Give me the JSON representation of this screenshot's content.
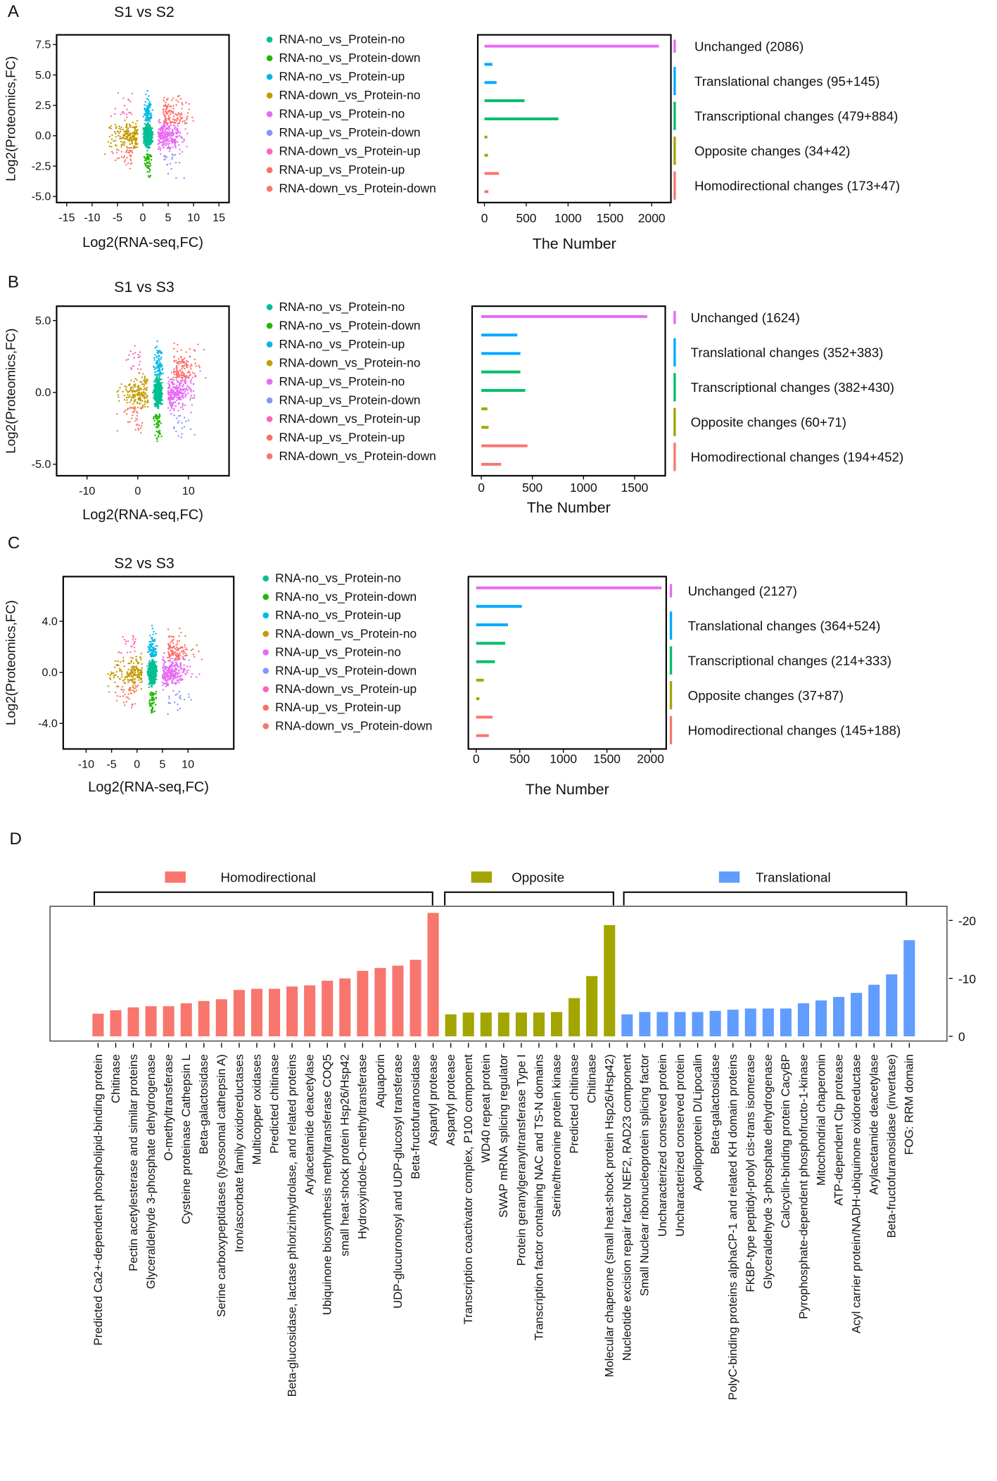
{
  "chart_data": [
    {
      "type": "scatter+bar",
      "panel_label": "A",
      "title": "S1 vs S2",
      "scatter": {
        "xlabel": "Log2(RNA-seq,FC)",
        "ylabel": "Log2(Proteomics,FC)",
        "xticks": [
          "-15",
          "-10",
          "-5",
          "0",
          "5",
          "10",
          "15"
        ],
        "xtick_values": [
          -15,
          -10,
          -5,
          0,
          5,
          10,
          15
        ],
        "yticks": [
          "7.5",
          "5.0",
          "2.5",
          "0.0",
          "-2.5",
          "-5.0"
        ],
        "ytick_values": [
          7.5,
          5,
          2.5,
          0,
          -2.5,
          -5
        ],
        "xlim": [
          -17,
          17
        ],
        "ylim": [
          -5.5,
          8.3
        ]
      },
      "bar": {
        "xlabel": "The Number",
        "xticks": [
          "0",
          "500",
          "1000",
          "1500",
          "2000"
        ],
        "xtick_values": [
          0,
          500,
          1000,
          1500,
          2000
        ],
        "xlim": [
          -80,
          2230
        ],
        "values": [
          2086,
          95,
          145,
          479,
          884,
          34,
          42,
          173,
          47
        ]
      },
      "groups": [
        "Unchanged (2086)",
        "Translational changes (95+145)",
        "Transcriptional changes (479+884)",
        "Opposite changes (34+42)",
        "Homodirectional changes (173+47)"
      ]
    },
    {
      "type": "scatter+bar",
      "panel_label": "B",
      "title": "S1 vs S3",
      "scatter": {
        "xlabel": "Log2(RNA-seq,FC)",
        "ylabel": "Log2(Proteomics,FC)",
        "xticks": [
          "-10",
          "0",
          "10"
        ],
        "xtick_values": [
          -10,
          0,
          10
        ],
        "yticks": [
          "5.0",
          "0.0",
          "-5.0"
        ],
        "ytick_values": [
          5,
          0,
          -5
        ],
        "xlim": [
          -16,
          18
        ],
        "ylim": [
          -5.8,
          6
        ]
      },
      "bar": {
        "xlabel": "The Number",
        "xticks": [
          "0",
          "500",
          "1000",
          "1500"
        ],
        "xtick_values": [
          0,
          500,
          1000,
          1500
        ],
        "xlim": [
          -90,
          1800
        ],
        "values": [
          1624,
          352,
          383,
          382,
          430,
          60,
          71,
          452,
          194
        ]
      },
      "groups": [
        "Unchanged (1624)",
        "Translational changes (352+383)",
        "Transcriptional changes (382+430)",
        "Opposite changes (60+71)",
        "Homodirectional changes (194+452)"
      ]
    },
    {
      "type": "scatter+bar",
      "panel_label": "C",
      "title": "S2 vs S3",
      "scatter": {
        "xlabel": "Log2(RNA-seq,FC)",
        "ylabel": "Log2(Proteomics,FC)",
        "xticks": [
          "-10",
          "-5",
          "0",
          "5",
          "10"
        ],
        "xtick_values": [
          -10,
          -5,
          0,
          5,
          10
        ],
        "yticks": [
          "4.0",
          "0.0",
          "-4.0"
        ],
        "ytick_values": [
          4,
          0,
          -4
        ],
        "xlim": [
          -14.5,
          19
        ],
        "ylim": [
          -6,
          7.5
        ]
      },
      "bar": {
        "xlabel": "The Number",
        "xticks": [
          "0",
          "500",
          "1000",
          "1500",
          "2000"
        ],
        "xtick_values": [
          0,
          500,
          1000,
          1500,
          2000
        ],
        "xlim": [
          -90,
          2180
        ],
        "values": [
          2127,
          524,
          364,
          333,
          214,
          87,
          37,
          188,
          145
        ]
      },
      "groups": [
        "Unchanged (2127)",
        "Translational changes (364+524)",
        "Transcriptional changes (214+333)",
        "Opposite changes (37+87)",
        "Homodirectional changes (145+188)"
      ]
    },
    {
      "type": "bar",
      "panel_label": "D",
      "legend": [
        "Homodirectional",
        "Opposite",
        "Translational"
      ],
      "yticks": [
        "-20",
        "-10",
        "0"
      ],
      "ytick_values": [
        20,
        10,
        0
      ],
      "ylim": [
        0,
        22.5
      ],
      "categories": [
        {
          "group": 0,
          "label": "Predicted Ca2+-dependent phospholipid-binding protein",
          "value": 3.9
        },
        {
          "group": 0,
          "label": "Chitinase",
          "value": 4.5
        },
        {
          "group": 0,
          "label": "Pectin acetylesterase and similar proteins",
          "value": 5.0
        },
        {
          "group": 0,
          "label": "Glyceraldehyde 3-phosphate dehydrogenase",
          "value": 5.2
        },
        {
          "group": 0,
          "label": "O-methyltransferase",
          "value": 5.2
        },
        {
          "group": 0,
          "label": "Cysteine proteinase Cathepsin L",
          "value": 5.7
        },
        {
          "group": 0,
          "label": "Beta-galactosidase",
          "value": 6.1
        },
        {
          "group": 0,
          "label": "Serine carboxypeptidases (lysosomal cathepsin A)",
          "value": 6.4
        },
        {
          "group": 0,
          "label": "Iron/ascorbate family oxidoreductases",
          "value": 8.0
        },
        {
          "group": 0,
          "label": "Multicopper oxidases",
          "value": 8.2
        },
        {
          "group": 0,
          "label": "Predicted chitinase",
          "value": 8.2
        },
        {
          "group": 0,
          "label": "Beta-glucosidase, lactase phlorizinhydrolase, and related proteins",
          "value": 8.6
        },
        {
          "group": 0,
          "label": "Arylacetamide deacetylase",
          "value": 8.8
        },
        {
          "group": 0,
          "label": "Ubiquinone biosynthesis methyltransferase COQ5",
          "value": 9.6
        },
        {
          "group": 0,
          "label": "small heat-shock protein Hsp26/Hsp42",
          "value": 10.0
        },
        {
          "group": 0,
          "label": "Hydroxyindole-O-methyltransferase",
          "value": 11.3
        },
        {
          "group": 0,
          "label": "Aquaporin",
          "value": 11.8
        },
        {
          "group": 0,
          "label": "UDP-glucuronosyl and UDP-glucosyl transferase",
          "value": 12.2
        },
        {
          "group": 0,
          "label": "Beta-fructofuranosidase",
          "value": 13.2
        },
        {
          "group": 0,
          "label": "Aspartyl protease",
          "value": 21.3
        },
        {
          "group": 1,
          "label": "Aspartyl protease",
          "value": 3.8
        },
        {
          "group": 1,
          "label": "Transcription coactivator complex, P100 component",
          "value": 4.1
        },
        {
          "group": 1,
          "label": "WD40 repeat protein",
          "value": 4.1
        },
        {
          "group": 1,
          "label": "SWAP mRNA splicing regulator",
          "value": 4.1
        },
        {
          "group": 1,
          "label": "Protein geranylgeranyltransferase Type I",
          "value": 4.1
        },
        {
          "group": 1,
          "label": "Transcription factor containing NAC and TS-N domains",
          "value": 4.1
        },
        {
          "group": 1,
          "label": "Serine/threonine protein kinase",
          "value": 4.2
        },
        {
          "group": 1,
          "label": "Predicted chitinase",
          "value": 6.6
        },
        {
          "group": 1,
          "label": "Chitinase",
          "value": 10.4
        },
        {
          "group": 1,
          "label": "Molecular chaperone (small heat-shock protein Hsp26/Hsp42)",
          "value": 19.2
        },
        {
          "group": 2,
          "label": "Nucleotide excision repair factor NEF2, RAD23 component",
          "value": 3.8
        },
        {
          "group": 2,
          "label": "Small Nuclear ribonucleoprotein splicing factor",
          "value": 4.2
        },
        {
          "group": 2,
          "label": "Uncharacterized conserved protein",
          "value": 4.2
        },
        {
          "group": 2,
          "label": "Uncharacterized conserved protein",
          "value": 4.2
        },
        {
          "group": 2,
          "label": "Apolipoprotein D/Lipocalin",
          "value": 4.2
        },
        {
          "group": 2,
          "label": "Beta-galactosidase",
          "value": 4.4
        },
        {
          "group": 2,
          "label": "PolyC-binding proteins alphaCP-1 and related KH domain proteins",
          "value": 4.6
        },
        {
          "group": 2,
          "label": "FKBP-type peptidyl-prolyl cis-trans isomerase",
          "value": 4.8
        },
        {
          "group": 2,
          "label": "Glyceraldehyde 3-phosphate dehydrogenase",
          "value": 4.8
        },
        {
          "group": 2,
          "label": "Calcyclin-binding protein CacyBP",
          "value": 4.8
        },
        {
          "group": 2,
          "label": "Pyrophosphate-dependent phosphofructo-1-kinase",
          "value": 5.7
        },
        {
          "group": 2,
          "label": "Mitochondrial chaperonin",
          "value": 6.2
        },
        {
          "group": 2,
          "label": "ATP-dependent Clp protease",
          "value": 6.8
        },
        {
          "group": 2,
          "label": "Acyl carrier protein/NADH-ubiquinone oxidoreductase",
          "value": 7.5
        },
        {
          "group": 2,
          "label": "Arylacetamide deacetylase",
          "value": 8.9
        },
        {
          "group": 2,
          "label": "Beta-fructofuranosidase (invertase)",
          "value": 10.7
        },
        {
          "group": 2,
          "label": "FOG: RRM domain",
          "value": 16.6
        }
      ]
    }
  ],
  "legend_categories": [
    "RNA-no_vs_Protein-no",
    "RNA-no_vs_Protein-down",
    "RNA-no_vs_Protein-up",
    "RNA-down_vs_Protein-no",
    "RNA-up_vs_Protein-no",
    "RNA-up_vs_Protein-down",
    "RNA-down_vs_Protein-up",
    "RNA-up_vs_Protein-up",
    "RNA-down_vs_Protein-down"
  ],
  "colors": {
    "categories": [
      "#00C094",
      "#24B700",
      "#00B8E7",
      "#C49A00",
      "#E76BF3",
      "#8494FF",
      "#FF62BC",
      "#FF6C67",
      "#F8766D"
    ],
    "bar_rows": [
      "#E76BF3",
      "#00A9FF",
      "#00A9FF",
      "#00BE67",
      "#00BE67",
      "#A3A500",
      "#A3A500",
      "#F8766D",
      "#F8766D"
    ],
    "groups": [
      "#E76BF3",
      "#00A9FF",
      "#00BE67",
      "#A3A500",
      "#F8766D"
    ],
    "panel_d": [
      "#F8766D",
      "#A3A500",
      "#619CFF"
    ]
  }
}
